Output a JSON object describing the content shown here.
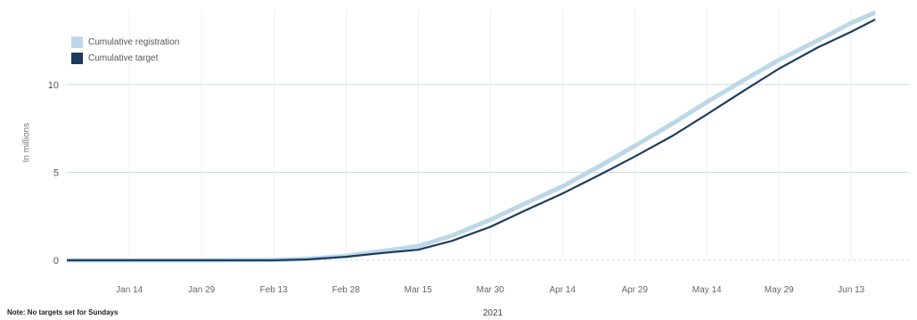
{
  "chart_data": {
    "type": "line",
    "title": "",
    "xlabel": "2021",
    "ylabel": "In millions",
    "note": "Note: No targets set for Sundays",
    "x_ticks": [
      "Jan 14",
      "Jan 29",
      "Feb 13",
      "Feb 28",
      "Mar 15",
      "Mar 30",
      "Apr 14",
      "Apr 29",
      "May 14",
      "May 29",
      "Jun 13"
    ],
    "y_ticks": [
      0,
      5,
      10
    ],
    "ylim": [
      0,
      14.3
    ],
    "legend_position": "top-left",
    "grid": true,
    "series": [
      {
        "name": "Cumulative registration",
        "color": "#bcd8e8",
        "x": [
          "Jan 1",
          "Jan 14",
          "Jan 29",
          "Feb 13",
          "Feb 20",
          "Feb 28",
          "Mar 7",
          "Mar 15",
          "Mar 22",
          "Mar 30",
          "Apr 6",
          "Apr 14",
          "Apr 22",
          "Apr 29",
          "May 7",
          "May 14",
          "May 22",
          "May 29",
          "Jun 6",
          "Jun 13",
          "Jun 18"
        ],
        "values": [
          0.0,
          0.0,
          0.0,
          0.02,
          0.08,
          0.25,
          0.5,
          0.8,
          1.4,
          2.3,
          3.2,
          4.2,
          5.4,
          6.5,
          7.8,
          9.0,
          10.3,
          11.4,
          12.5,
          13.5,
          14.1
        ]
      },
      {
        "name": "Cumulative target",
        "color": "#1f3b5c",
        "x": [
          "Jan 1",
          "Jan 14",
          "Jan 29",
          "Feb 13",
          "Feb 20",
          "Feb 28",
          "Mar 7",
          "Mar 15",
          "Mar 22",
          "Mar 30",
          "Apr 6",
          "Apr 14",
          "Apr 22",
          "Apr 29",
          "May 7",
          "May 14",
          "May 22",
          "May 29",
          "Jun 6",
          "Jun 13",
          "Jun 18"
        ],
        "values": [
          0.0,
          0.0,
          0.0,
          0.0,
          0.05,
          0.2,
          0.4,
          0.6,
          1.1,
          1.9,
          2.8,
          3.8,
          4.9,
          5.9,
          7.1,
          8.3,
          9.7,
          10.9,
          12.1,
          13.0,
          13.7
        ]
      }
    ]
  }
}
